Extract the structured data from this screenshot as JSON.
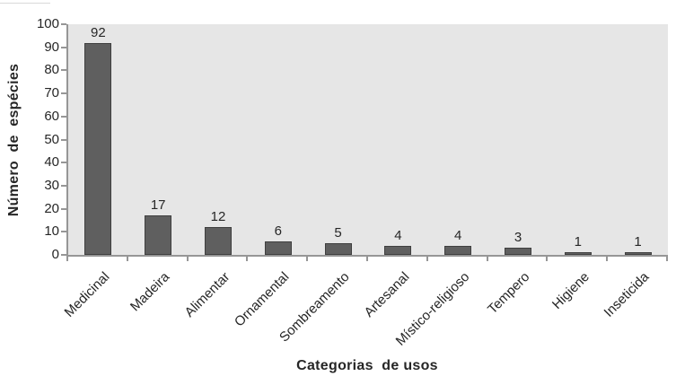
{
  "chart_data": {
    "type": "bar",
    "categories": [
      "Medicinal",
      "Madeira",
      "Alimentar",
      "Ornamental",
      "Sombreamento",
      "Artesanal",
      "Místico-religioso",
      "Tempero",
      "Higiene",
      "Inseticida"
    ],
    "values": [
      92,
      17,
      12,
      6,
      5,
      4,
      4,
      3,
      1,
      1
    ],
    "data_labels": [
      92,
      17,
      12,
      6,
      5,
      4,
      4,
      3,
      1,
      1
    ],
    "xlabel": "Categorias  de usos",
    "ylabel": "Número  de  espécies",
    "ylim": [
      0,
      100
    ],
    "ytick_step": 10,
    "ytick_labels": [
      "0",
      "10",
      "20",
      "30",
      "40",
      "50",
      "60",
      "70",
      "80",
      "90",
      "100"
    ],
    "grid": false,
    "legend": false,
    "colors": {
      "bar_fill": "#5f5f5f",
      "bar_border": "#3f3f3f",
      "plot_background": "#e6e6e6",
      "axis_line": "#969696",
      "text": "#262626"
    }
  }
}
